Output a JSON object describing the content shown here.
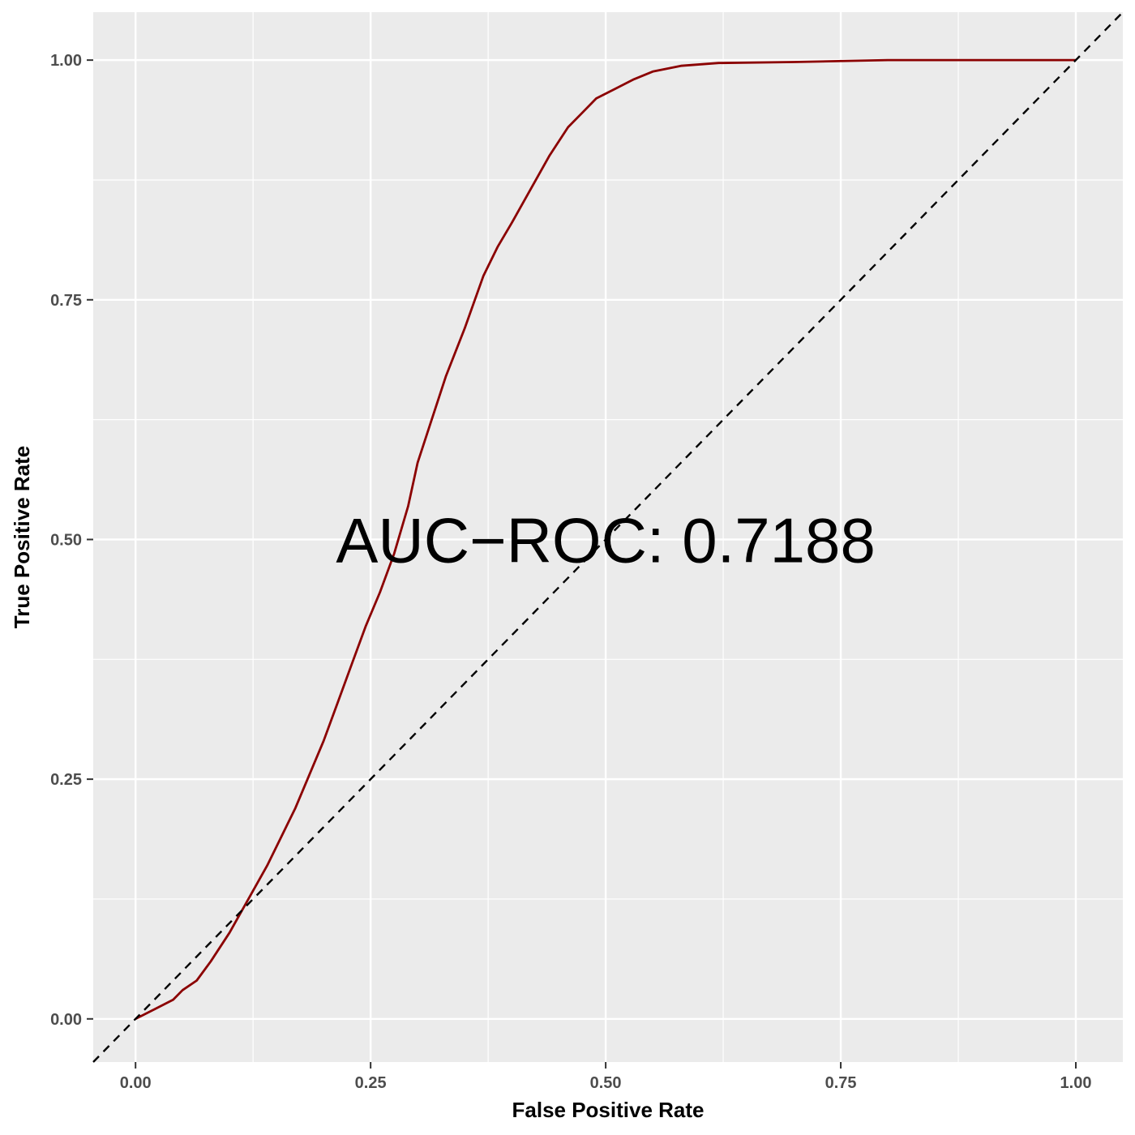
{
  "chart_data": {
    "type": "line",
    "xlabel": "False Positive Rate",
    "ylabel": "True Positive Rate",
    "xlim": [
      -0.045,
      1.05
    ],
    "ylim": [
      -0.045,
      1.05
    ],
    "xticks": [
      0.0,
      0.25,
      0.5,
      0.75,
      1.0
    ],
    "xtick_labels": [
      "0.00",
      "0.25",
      "0.50",
      "0.75",
      "1.00"
    ],
    "yticks": [
      0.0,
      0.25,
      0.5,
      0.75,
      1.0
    ],
    "ytick_labels": [
      "0.00",
      "0.25",
      "0.50",
      "0.75",
      "1.00"
    ],
    "minor_grid": [
      0.125,
      0.375,
      0.625,
      0.875
    ],
    "grid": true,
    "legend": "none",
    "annotation": "AUC−ROC: 0.7188",
    "annotation_position": {
      "x": 0.5,
      "y": 0.5
    },
    "series": [
      {
        "line_style": "solid",
        "color": "#8b0000",
        "x": [
          0.0,
          0.02,
          0.04,
          0.05,
          0.065,
          0.08,
          0.1,
          0.12,
          0.14,
          0.155,
          0.17,
          0.185,
          0.2,
          0.215,
          0.23,
          0.245,
          0.26,
          0.275,
          0.29,
          0.3,
          0.315,
          0.33,
          0.35,
          0.37,
          0.385,
          0.4,
          0.42,
          0.44,
          0.46,
          0.475,
          0.49,
          0.51,
          0.53,
          0.55,
          0.58,
          0.62,
          0.7,
          0.8,
          0.9,
          1.0
        ],
        "y": [
          0.0,
          0.01,
          0.02,
          0.03,
          0.04,
          0.06,
          0.09,
          0.125,
          0.16,
          0.19,
          0.22,
          0.255,
          0.29,
          0.33,
          0.37,
          0.41,
          0.445,
          0.485,
          0.535,
          0.58,
          0.625,
          0.67,
          0.72,
          0.775,
          0.805,
          0.83,
          0.865,
          0.9,
          0.93,
          0.945,
          0.96,
          0.97,
          0.98,
          0.988,
          0.994,
          0.997,
          0.998,
          1.0,
          1.0,
          1.0
        ]
      },
      {
        "line_style": "dashed",
        "color": "#000000",
        "x": [
          -0.045,
          1.05
        ],
        "y": [
          -0.045,
          1.05
        ]
      }
    ]
  }
}
